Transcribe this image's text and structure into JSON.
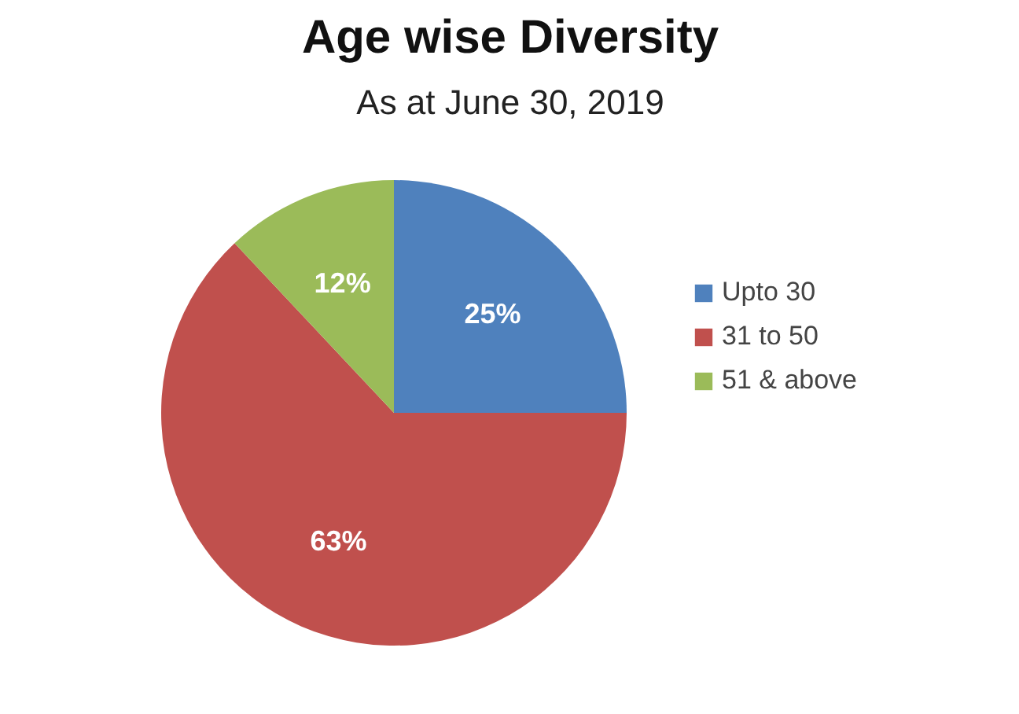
{
  "chart_data": {
    "type": "pie",
    "title": "Age wise Diversity",
    "subtitle": "As at June 30, 2019",
    "categories": [
      "Upto 30",
      "31 to 50",
      "51 & above"
    ],
    "values": [
      25,
      63,
      12
    ],
    "colors": [
      "#4f81bd",
      "#c0504d",
      "#9bbb59"
    ],
    "value_labels": [
      "25%",
      "63%",
      "12%"
    ],
    "legend": "right"
  }
}
